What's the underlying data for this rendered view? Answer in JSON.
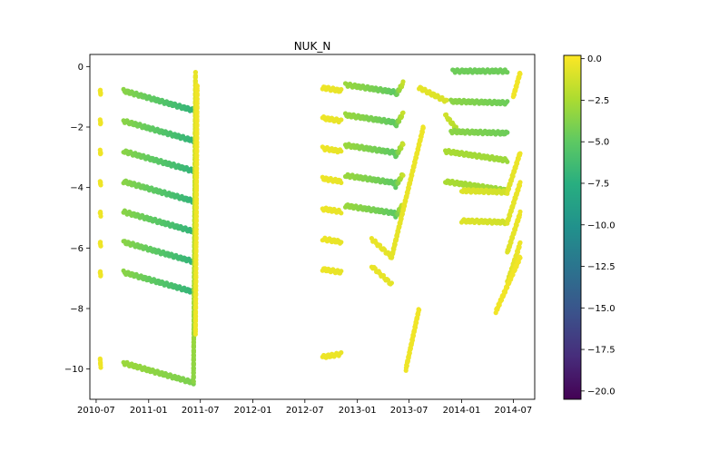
{
  "chart_data": {
    "type": "scatter",
    "title": "NUK_N",
    "xlabel": "",
    "ylabel": "",
    "x_range": [
      "2010-06-09",
      "2014-09-14"
    ],
    "ylim": [
      -11.0,
      0.4
    ],
    "x_tick_labels": [
      "2010-07",
      "2011-01",
      "2011-07",
      "2012-01",
      "2012-07",
      "2013-01",
      "2013-07",
      "2014-01",
      "2014-07"
    ],
    "y_ticks": [
      0,
      -2,
      -4,
      -6,
      -8,
      -10
    ],
    "y_tick_labels": [
      "0",
      "−2",
      "−4",
      "−6",
      "−8",
      "−10"
    ],
    "grid": false,
    "colorbar": {
      "colormap": "viridis",
      "range": [
        -20.5,
        0.2
      ],
      "ticks": [
        0.0,
        -2.5,
        -5.0,
        -7.5,
        -10.0,
        -12.5,
        -15.0,
        -17.5,
        -20.0
      ],
      "tick_labels": [
        "0.0",
        "−2.5",
        "−5.0",
        "−7.5",
        "−10.0",
        "−12.5",
        "−15.0",
        "−17.5",
        "−20.0"
      ]
    },
    "segments": [
      {
        "start": "2010-07-15",
        "end": "2010-07-17",
        "base": -0.8,
        "levels": 7,
        "spacing": 1,
        "drift": -0.1,
        "value_start": -0.2,
        "value_end": -0.3
      },
      {
        "start": "2010-07-15",
        "end": "2010-07-17",
        "base": -9.7,
        "levels": 1,
        "drift": -0.2,
        "value_start": -0.2,
        "value_end": -0.3
      },
      {
        "start": "2010-10-05",
        "end": "2011-06-07",
        "base": -0.8,
        "levels": 7,
        "spacing": 1,
        "drift": -0.65,
        "value_start": -3.5,
        "value_end": -7.0
      },
      {
        "start": "2010-10-05",
        "end": "2011-06-07",
        "base": -9.8,
        "levels": 1,
        "drift": -0.65,
        "value_start": -3.0,
        "value_end": -4.0
      },
      {
        "start": "2011-06-07",
        "end": "2011-06-14",
        "base": -10.4,
        "levels": 1,
        "drift": 10.2,
        "value_start": -3.5,
        "value_end": -0.5
      },
      {
        "start": "2011-06-14",
        "end": "2011-06-20",
        "base": -8.8,
        "levels": 1,
        "drift": 8.2,
        "value_start": -0.3,
        "value_end": -0.2
      },
      {
        "start": "2012-09-01",
        "end": "2012-11-05",
        "base": -0.7,
        "levels": 7,
        "spacing": 1,
        "drift": -0.1,
        "value_start": -0.3,
        "value_end": -0.5
      },
      {
        "start": "2012-09-01",
        "end": "2012-11-05",
        "base": -9.6,
        "levels": 1,
        "drift": 0.1,
        "value_start": -0.3,
        "value_end": -0.4
      },
      {
        "start": "2012-11-20",
        "end": "2013-05-15",
        "base": -0.6,
        "levels": 5,
        "spacing": 1,
        "drift": -0.25,
        "value_start": -3.0,
        "value_end": -5.0
      },
      {
        "start": "2013-05-15",
        "end": "2013-06-10",
        "base": -0.95,
        "levels": 5,
        "spacing": 1,
        "drift": 0.4,
        "value_start": -5.0,
        "value_end": -1.5
      },
      {
        "start": "2013-02-20",
        "end": "2013-05-01",
        "base": -5.7,
        "levels": 2,
        "spacing": 0.9,
        "drift": -0.6,
        "value_start": -0.4,
        "value_end": -0.6
      },
      {
        "start": "2013-05-01",
        "end": "2013-08-20",
        "base": -6.3,
        "levels": 1,
        "drift": 4.3,
        "value_start": -0.6,
        "value_end": -0.3
      },
      {
        "start": "2013-06-20",
        "end": "2013-08-05",
        "base": -10.0,
        "levels": 1,
        "drift": 2.0,
        "value_start": -0.3,
        "value_end": -0.2
      },
      {
        "start": "2013-08-05",
        "end": "2013-11-10",
        "base": -0.7,
        "levels": 1,
        "drift": -0.45,
        "value_start": -0.5,
        "value_end": -1.0
      },
      {
        "start": "2013-11-05",
        "end": "2013-12-25",
        "base": -1.6,
        "levels": 1,
        "drift": -0.6,
        "value_start": -1.2,
        "value_end": -2.5
      },
      {
        "start": "2013-12-01",
        "end": "2014-06-10",
        "base": -0.15,
        "levels": 1,
        "drift": 0.0,
        "value_start": -4.5,
        "value_end": -4.5
      },
      {
        "start": "2013-11-25",
        "end": "2014-06-10",
        "base": -1.15,
        "levels": 2,
        "spacing": 1,
        "drift": -0.05,
        "value_start": -3.5,
        "value_end": -4.5
      },
      {
        "start": "2013-11-05",
        "end": "2014-06-10",
        "base": -2.8,
        "levels": 2,
        "spacing": 1,
        "drift": -0.3,
        "value_start": -2.5,
        "value_end": -3.0
      },
      {
        "start": "2014-01-01",
        "end": "2014-06-10",
        "base": -4.1,
        "levels": 2,
        "spacing": 1,
        "drift": -0.05,
        "value_start": -0.8,
        "value_end": -1.3
      },
      {
        "start": "2014-06-10",
        "end": "2014-07-25",
        "base": -4.15,
        "levels": 4,
        "spacing": 1,
        "drift": 1.3,
        "value_start": -0.8,
        "value_end": -0.3
      },
      {
        "start": "2014-05-01",
        "end": "2014-07-25",
        "base": -8.1,
        "levels": 1,
        "drift": 1.8,
        "value_start": -0.2,
        "value_end": -0.2
      },
      {
        "start": "2014-07-01",
        "end": "2014-07-25",
        "base": -1.0,
        "levels": 1,
        "drift": 0.8,
        "value_start": -0.2,
        "value_end": -0.2
      }
    ]
  }
}
